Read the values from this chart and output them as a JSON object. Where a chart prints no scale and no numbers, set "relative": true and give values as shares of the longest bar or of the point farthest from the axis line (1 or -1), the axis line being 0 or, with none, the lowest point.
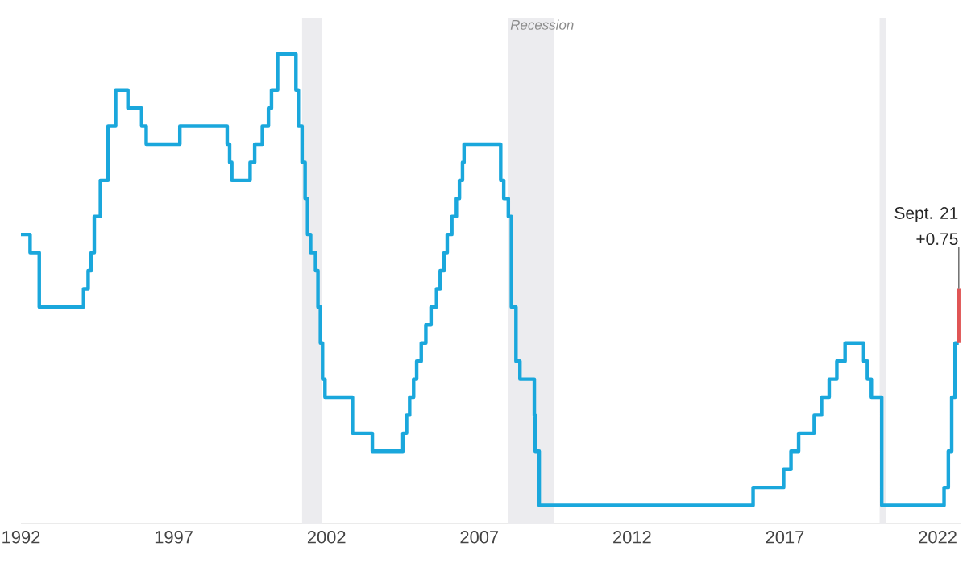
{
  "chart_data": {
    "type": "step",
    "relative": true,
    "x": [
      1992.0,
      1992.3,
      1992.6,
      1994.05,
      1994.2,
      1994.3,
      1994.4,
      1994.6,
      1994.85,
      1995.1,
      1995.5,
      1995.95,
      1996.1,
      1997.2,
      1998.75,
      1998.83,
      1998.9,
      1999.5,
      1999.65,
      1999.9,
      2000.1,
      2000.2,
      2000.4,
      2001.0,
      2001.08,
      2001.2,
      2001.3,
      2001.38,
      2001.48,
      2001.64,
      2001.72,
      2001.8,
      2001.87,
      2001.95,
      2002.85,
      2003.5,
      2004.5,
      2004.62,
      2004.72,
      2004.85,
      2004.95,
      2005.1,
      2005.25,
      2005.42,
      2005.6,
      2005.72,
      2005.85,
      2005.95,
      2006.1,
      2006.25,
      2006.35,
      2006.45,
      2006.5,
      2007.7,
      2007.8,
      2007.95,
      2008.05,
      2008.2,
      2008.33,
      2008.8,
      2008.83,
      2008.96,
      2015.96,
      2016.96,
      2017.2,
      2017.45,
      2017.96,
      2018.2,
      2018.45,
      2018.7,
      2018.97,
      2019.58,
      2019.7,
      2019.83,
      2020.17,
      2022.21,
      2022.35,
      2022.46,
      2022.57,
      2022.69
    ],
    "series": [
      {
        "color": "#1aa7dc",
        "values": [
          0.6154,
          0.5769,
          0.4615,
          0.5,
          0.5385,
          0.5769,
          0.6538,
          0.7308,
          0.8462,
          0.9231,
          0.8846,
          0.8462,
          0.8077,
          0.8462,
          0.8077,
          0.7692,
          0.7308,
          0.7692,
          0.8077,
          0.8462,
          0.8846,
          0.9231,
          1,
          0.9231,
          0.8462,
          0.7692,
          0.6923,
          0.6154,
          0.5769,
          0.5385,
          0.4615,
          0.3846,
          0.3077,
          0.2692,
          0.1923,
          0.1538,
          0.1923,
          0.2308,
          0.2692,
          0.3077,
          0.3462,
          0.3846,
          0.4231,
          0.4615,
          0.5,
          0.5385,
          0.5769,
          0.6154,
          0.6538,
          0.6923,
          0.7308,
          0.7692,
          0.8077,
          0.7308,
          0.6923,
          0.6538,
          0.4615,
          0.3462,
          0.3077,
          0.2308,
          0.1538,
          0.0385,
          0.0769,
          0.1154,
          0.1538,
          0.1923,
          0.2308,
          0.2692,
          0.3077,
          0.3462,
          0.3846,
          0.3462,
          0.3077,
          0.2692,
          0.0385,
          0.0769,
          0.1538,
          0.2692,
          0.3846,
          0.3846
        ]
      },
      {
        "color": "#e05555",
        "x": [
          2022.69,
          2022.69
        ],
        "values": [
          0.3846,
          0.5
        ]
      }
    ],
    "xlim": [
      1992,
      2022.75
    ],
    "xticks": [
      1992,
      1997,
      2002,
      2007,
      2012,
      2017,
      2022
    ],
    "bands": [
      {
        "axis": "x",
        "from": 2001.2,
        "to": 2001.85,
        "color": "#ececef"
      },
      {
        "axis": "x",
        "from": 2007.95,
        "to": 2009.45,
        "label": "Recession",
        "color": "#ececef"
      },
      {
        "axis": "x",
        "from": 2020.1,
        "to": 2020.3,
        "color": "#ececef"
      }
    ],
    "annotations": [
      "Sept. 21",
      {
        "text": "+0.75",
        "x": 2022.69,
        "y": 0.5
      }
    ]
  }
}
